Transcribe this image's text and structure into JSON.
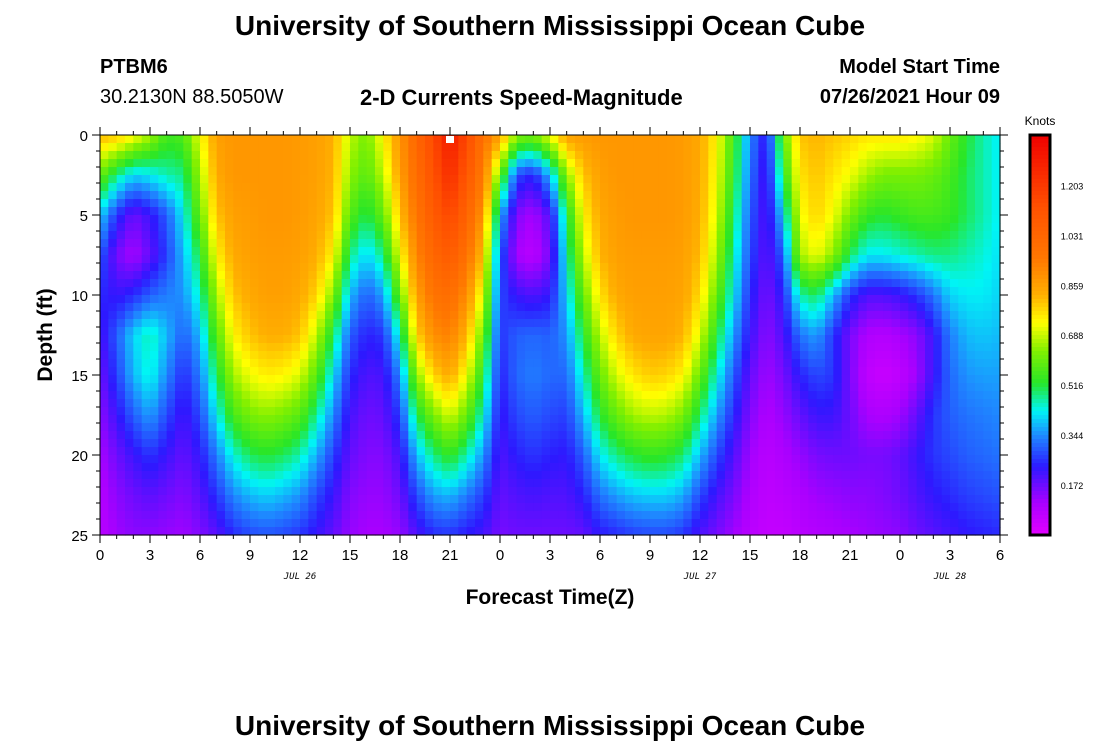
{
  "header": {
    "title": "University of Southern Mississippi Ocean Cube",
    "footer_title": "University of Southern Mississippi Ocean Cube",
    "station_id": "PTBM6",
    "station_coords": "30.2130N  88.5050W",
    "subtitle": "2-D Currents Speed-Magnitude",
    "model_start_label": "Model Start Time",
    "model_start_value": "07/26/2021 Hour 09"
  },
  "chart_data": {
    "type": "heatmap",
    "title": "2-D Currents Speed-Magnitude",
    "xlabel": "Forecast Time(Z)",
    "ylabel": "Depth (ft)",
    "x_tick_labels": [
      "0",
      "3",
      "6",
      "9",
      "12",
      "15",
      "18",
      "21",
      "0",
      "3",
      "6",
      "9",
      "12",
      "15",
      "18",
      "21",
      "0",
      "3",
      "6"
    ],
    "x_range_hours": [
      0,
      54
    ],
    "date_labels": [
      {
        "hour": 12,
        "text": "JUL 26"
      },
      {
        "hour": 36,
        "text": "JUL 27"
      },
      {
        "hour": 51,
        "text": "JUL 28"
      }
    ],
    "y_ticks": [
      0,
      5,
      10,
      15,
      20,
      25
    ],
    "ylim": [
      0,
      25
    ],
    "y_inverted": true,
    "marker": {
      "hour": 21,
      "depth_ft": 0.2
    },
    "colorbar": {
      "label": "Knots",
      "ticks": [
        "0.172",
        "0.344",
        "0.516",
        "0.688",
        "0.859",
        "1.031",
        "1.203"
      ],
      "min": 0.0,
      "max": 1.376
    },
    "speed_profiles_knots": {
      "hours": [
        0,
        1,
        2,
        3,
        4,
        5,
        6,
        7,
        8,
        9,
        10,
        11,
        12,
        13,
        14,
        15,
        16,
        17,
        18,
        19,
        20,
        21,
        22,
        23,
        24,
        25,
        26,
        27,
        28,
        29,
        30,
        31,
        32,
        33,
        34,
        35,
        36,
        37,
        38,
        39,
        40,
        41,
        42,
        43,
        44,
        45,
        46,
        47,
        48,
        49,
        50,
        51,
        52,
        53,
        54
      ],
      "depths_ft": [
        0,
        2.5,
        5,
        7.5,
        10,
        12.5,
        15,
        17.5,
        20,
        22.5,
        25
      ],
      "values": [
        [
          0.82,
          0.6,
          0.4,
          0.3,
          0.25,
          0.2,
          0.17,
          0.14,
          0.11,
          0.09,
          0.08
        ],
        [
          0.8,
          0.48,
          0.26,
          0.16,
          0.22,
          0.3,
          0.27,
          0.22,
          0.17,
          0.14,
          0.12
        ],
        [
          0.74,
          0.4,
          0.17,
          0.11,
          0.25,
          0.4,
          0.38,
          0.3,
          0.22,
          0.17,
          0.14
        ],
        [
          0.66,
          0.42,
          0.22,
          0.18,
          0.3,
          0.46,
          0.44,
          0.36,
          0.26,
          0.19,
          0.14
        ],
        [
          0.55,
          0.46,
          0.3,
          0.27,
          0.33,
          0.38,
          0.34,
          0.28,
          0.22,
          0.17,
          0.13
        ],
        [
          0.57,
          0.48,
          0.42,
          0.38,
          0.35,
          0.3,
          0.25,
          0.21,
          0.18,
          0.15,
          0.12
        ],
        [
          0.72,
          0.66,
          0.6,
          0.52,
          0.45,
          0.38,
          0.33,
          0.28,
          0.23,
          0.19,
          0.15
        ],
        [
          0.86,
          0.84,
          0.8,
          0.74,
          0.66,
          0.58,
          0.5,
          0.42,
          0.33,
          0.26,
          0.19
        ],
        [
          0.88,
          0.88,
          0.86,
          0.84,
          0.8,
          0.74,
          0.66,
          0.56,
          0.44,
          0.34,
          0.25
        ],
        [
          0.88,
          0.88,
          0.87,
          0.86,
          0.84,
          0.8,
          0.72,
          0.62,
          0.5,
          0.38,
          0.28
        ],
        [
          0.88,
          0.88,
          0.88,
          0.87,
          0.86,
          0.83,
          0.75,
          0.64,
          0.52,
          0.4,
          0.29
        ],
        [
          0.88,
          0.88,
          0.88,
          0.87,
          0.86,
          0.83,
          0.74,
          0.62,
          0.5,
          0.38,
          0.28
        ],
        [
          0.87,
          0.87,
          0.87,
          0.86,
          0.84,
          0.8,
          0.7,
          0.58,
          0.46,
          0.35,
          0.26
        ],
        [
          0.86,
          0.86,
          0.85,
          0.83,
          0.78,
          0.68,
          0.58,
          0.47,
          0.37,
          0.28,
          0.22
        ],
        [
          0.83,
          0.82,
          0.8,
          0.74,
          0.63,
          0.5,
          0.41,
          0.34,
          0.27,
          0.22,
          0.18
        ],
        [
          0.68,
          0.64,
          0.58,
          0.48,
          0.38,
          0.3,
          0.25,
          0.21,
          0.18,
          0.15,
          0.13
        ],
        [
          0.62,
          0.58,
          0.5,
          0.4,
          0.3,
          0.24,
          0.2,
          0.17,
          0.15,
          0.13,
          0.11
        ],
        [
          0.74,
          0.68,
          0.6,
          0.48,
          0.36,
          0.26,
          0.21,
          0.18,
          0.15,
          0.13,
          0.11
        ],
        [
          0.88,
          0.86,
          0.8,
          0.72,
          0.6,
          0.45,
          0.34,
          0.27,
          0.21,
          0.17,
          0.13
        ],
        [
          1.03,
          1.0,
          0.97,
          0.92,
          0.86,
          0.78,
          0.64,
          0.5,
          0.38,
          0.28,
          0.2
        ],
        [
          1.15,
          1.12,
          1.08,
          1.03,
          0.97,
          0.9,
          0.78,
          0.62,
          0.48,
          0.36,
          0.25
        ],
        [
          1.3,
          1.24,
          1.16,
          1.08,
          1.0,
          0.93,
          0.84,
          0.7,
          0.54,
          0.38,
          0.26
        ],
        [
          1.15,
          1.1,
          1.04,
          0.98,
          0.9,
          0.82,
          0.72,
          0.6,
          0.46,
          0.33,
          0.23
        ],
        [
          0.98,
          0.94,
          0.88,
          0.8,
          0.7,
          0.6,
          0.52,
          0.44,
          0.35,
          0.27,
          0.21
        ],
        [
          0.86,
          0.6,
          0.38,
          0.3,
          0.28,
          0.26,
          0.24,
          0.22,
          0.2,
          0.18,
          0.16
        ],
        [
          0.64,
          0.28,
          0.15,
          0.11,
          0.22,
          0.3,
          0.31,
          0.28,
          0.24,
          0.2,
          0.17
        ],
        [
          0.62,
          0.24,
          0.11,
          0.08,
          0.2,
          0.31,
          0.33,
          0.3,
          0.26,
          0.21,
          0.17
        ],
        [
          0.72,
          0.38,
          0.2,
          0.16,
          0.23,
          0.3,
          0.31,
          0.28,
          0.24,
          0.2,
          0.17
        ],
        [
          0.86,
          0.64,
          0.5,
          0.45,
          0.4,
          0.35,
          0.31,
          0.27,
          0.23,
          0.2,
          0.17
        ],
        [
          0.87,
          0.8,
          0.74,
          0.68,
          0.6,
          0.52,
          0.45,
          0.38,
          0.3,
          0.24,
          0.18
        ],
        [
          0.88,
          0.86,
          0.84,
          0.82,
          0.76,
          0.68,
          0.6,
          0.52,
          0.42,
          0.32,
          0.23
        ],
        [
          0.88,
          0.88,
          0.87,
          0.86,
          0.84,
          0.78,
          0.7,
          0.6,
          0.48,
          0.36,
          0.25
        ],
        [
          0.88,
          0.88,
          0.88,
          0.87,
          0.86,
          0.84,
          0.76,
          0.66,
          0.52,
          0.39,
          0.27
        ],
        [
          0.88,
          0.88,
          0.88,
          0.87,
          0.86,
          0.85,
          0.79,
          0.68,
          0.54,
          0.4,
          0.28
        ],
        [
          0.88,
          0.88,
          0.88,
          0.87,
          0.86,
          0.85,
          0.78,
          0.67,
          0.53,
          0.4,
          0.28
        ],
        [
          0.87,
          0.87,
          0.87,
          0.86,
          0.85,
          0.82,
          0.74,
          0.62,
          0.49,
          0.37,
          0.26
        ],
        [
          0.84,
          0.84,
          0.83,
          0.81,
          0.77,
          0.7,
          0.6,
          0.49,
          0.38,
          0.28,
          0.2
        ],
        [
          0.74,
          0.72,
          0.7,
          0.66,
          0.6,
          0.52,
          0.44,
          0.36,
          0.28,
          0.21,
          0.16
        ],
        [
          0.56,
          0.54,
          0.5,
          0.46,
          0.42,
          0.36,
          0.3,
          0.25,
          0.2,
          0.16,
          0.12
        ],
        [
          0.34,
          0.32,
          0.3,
          0.28,
          0.25,
          0.22,
          0.18,
          0.15,
          0.12,
          0.1,
          0.08
        ],
        [
          0.22,
          0.2,
          0.19,
          0.18,
          0.16,
          0.14,
          0.12,
          0.1,
          0.08,
          0.07,
          0.06
        ],
        [
          0.6,
          0.52,
          0.4,
          0.3,
          0.24,
          0.2,
          0.16,
          0.13,
          0.1,
          0.08,
          0.06
        ],
        [
          0.8,
          0.76,
          0.72,
          0.66,
          0.46,
          0.32,
          0.24,
          0.18,
          0.13,
          0.1,
          0.08
        ],
        [
          0.82,
          0.8,
          0.78,
          0.72,
          0.5,
          0.36,
          0.28,
          0.22,
          0.16,
          0.12,
          0.09
        ],
        [
          0.8,
          0.76,
          0.72,
          0.64,
          0.38,
          0.26,
          0.26,
          0.22,
          0.17,
          0.13,
          0.1
        ],
        [
          0.78,
          0.72,
          0.62,
          0.5,
          0.26,
          0.16,
          0.16,
          0.17,
          0.17,
          0.14,
          0.11
        ],
        [
          0.76,
          0.66,
          0.54,
          0.42,
          0.2,
          0.1,
          0.07,
          0.11,
          0.16,
          0.14,
          0.12
        ],
        [
          0.76,
          0.62,
          0.52,
          0.42,
          0.2,
          0.09,
          0.05,
          0.1,
          0.16,
          0.15,
          0.13
        ],
        [
          0.76,
          0.62,
          0.54,
          0.44,
          0.22,
          0.11,
          0.07,
          0.12,
          0.18,
          0.17,
          0.14
        ],
        [
          0.74,
          0.62,
          0.56,
          0.46,
          0.26,
          0.14,
          0.12,
          0.18,
          0.22,
          0.2,
          0.17
        ],
        [
          0.7,
          0.6,
          0.56,
          0.48,
          0.32,
          0.22,
          0.22,
          0.26,
          0.26,
          0.23,
          0.19
        ],
        [
          0.6,
          0.56,
          0.54,
          0.48,
          0.4,
          0.33,
          0.31,
          0.3,
          0.28,
          0.25,
          0.21
        ],
        [
          0.52,
          0.5,
          0.5,
          0.46,
          0.42,
          0.38,
          0.35,
          0.32,
          0.3,
          0.27,
          0.23
        ],
        [
          0.46,
          0.46,
          0.46,
          0.44,
          0.42,
          0.39,
          0.36,
          0.33,
          0.31,
          0.28,
          0.24
        ],
        [
          0.42,
          0.42,
          0.42,
          0.41,
          0.4,
          0.38,
          0.36,
          0.34,
          0.32,
          0.29,
          0.25
        ]
      ]
    }
  }
}
